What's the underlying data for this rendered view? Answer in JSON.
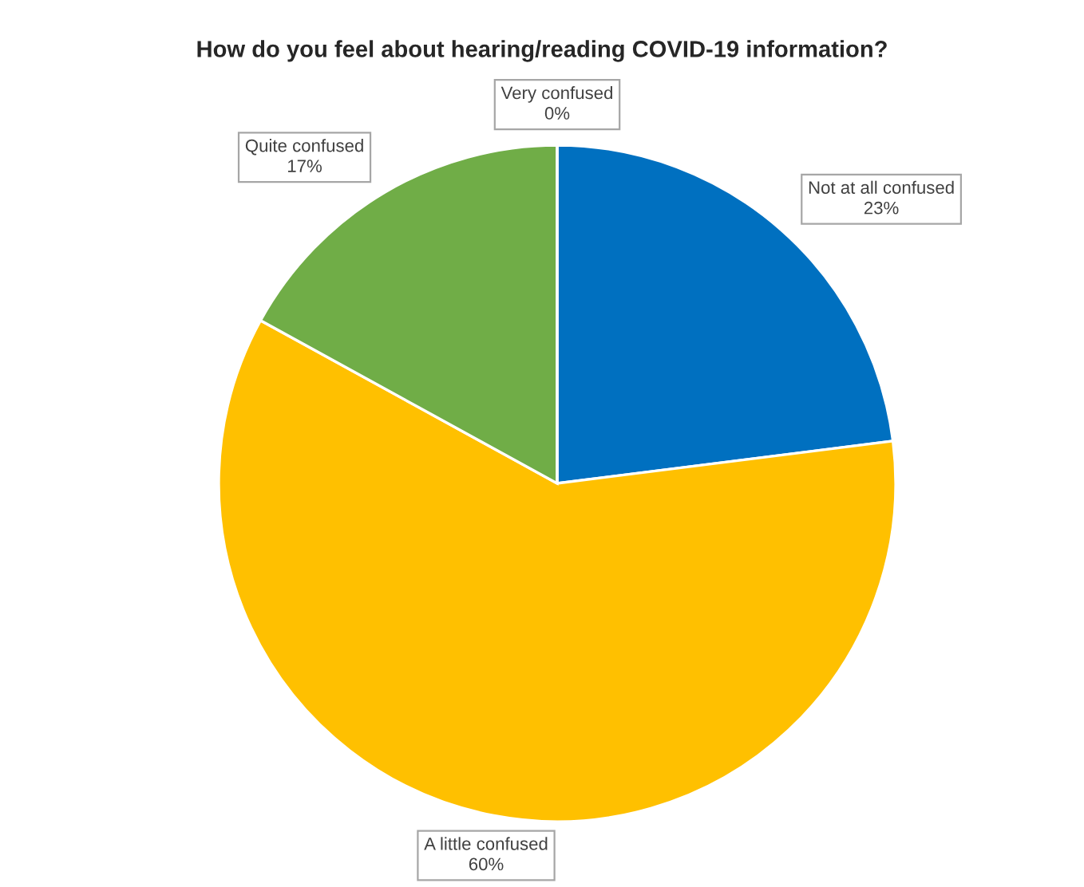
{
  "chart_data": {
    "type": "pie",
    "title": "How do you feel about hearing/reading COVID-19 information?",
    "categories": [
      "Not at all confused",
      "A little confused",
      "Quite confused",
      "Very confused"
    ],
    "values": [
      23,
      60,
      17,
      0
    ],
    "colors": [
      "#0070c0",
      "#ffc000",
      "#70ad47",
      "#a5a5a5"
    ],
    "value_labels": [
      "23%",
      "60%",
      "17%",
      "0%"
    ],
    "legend": false
  }
}
